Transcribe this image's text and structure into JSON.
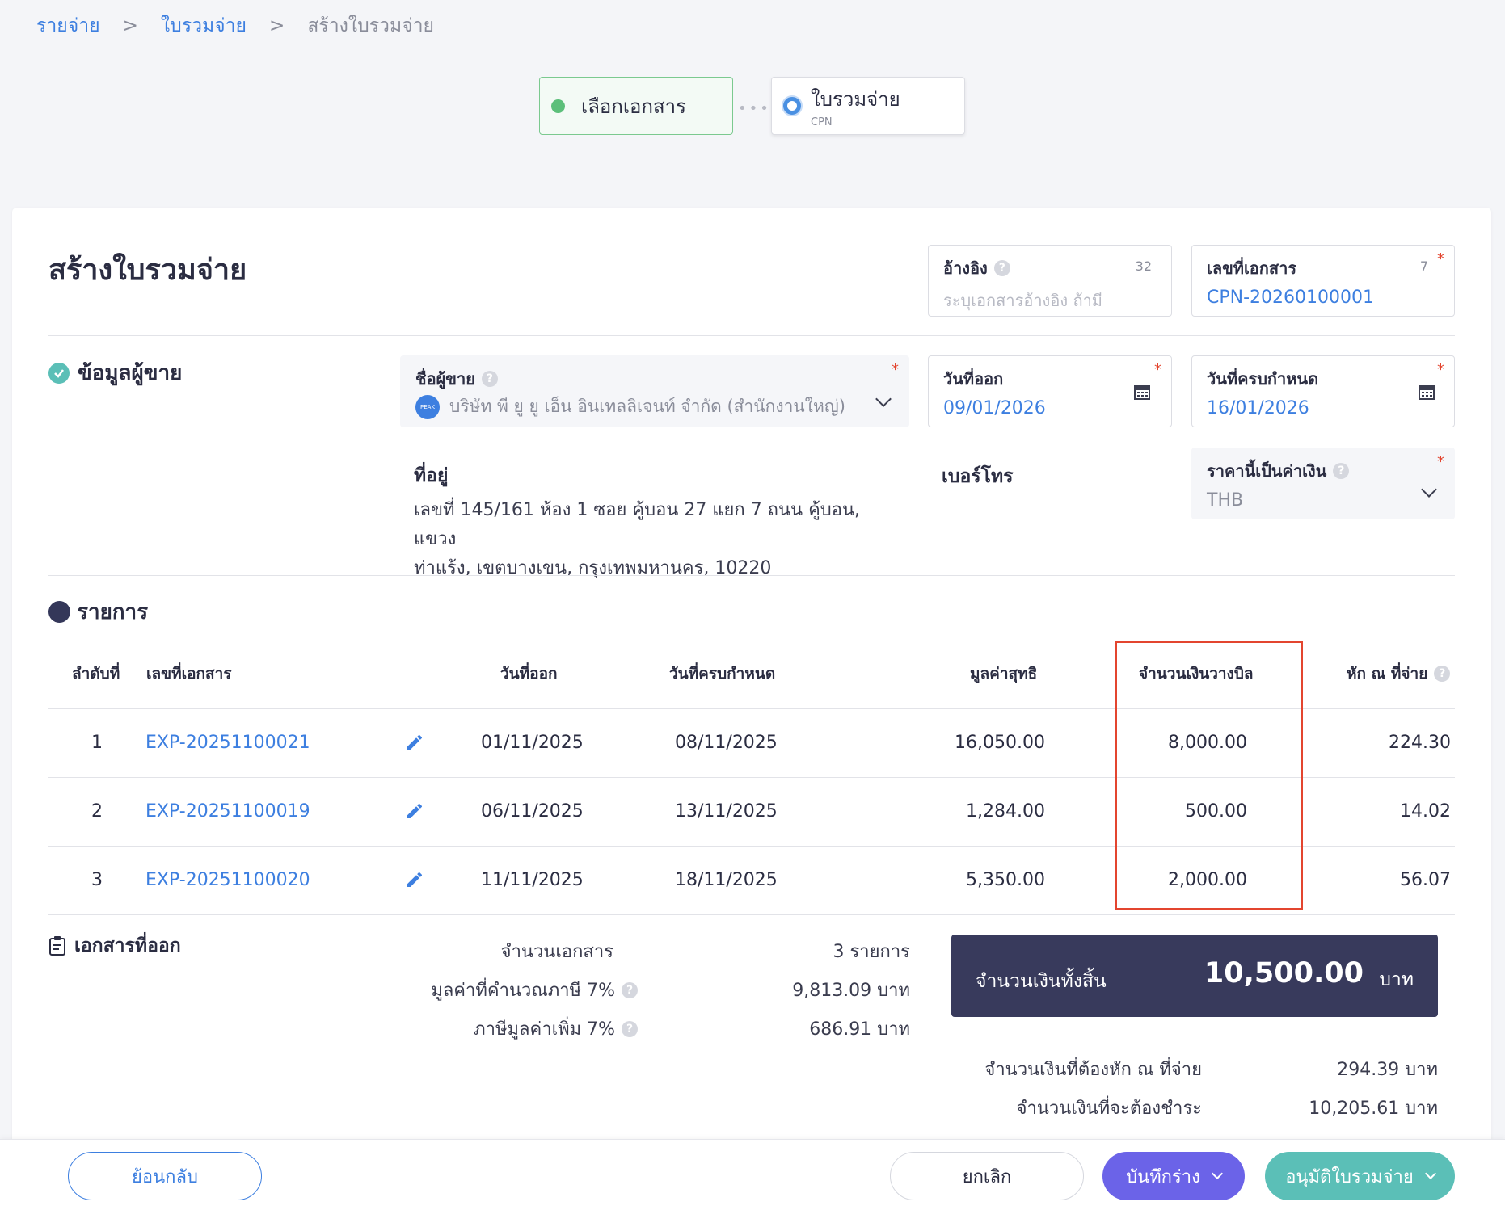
{
  "breadcrumb": {
    "items": [
      "รายจ่าย",
      "ใบรวมจ่าย"
    ],
    "separator": ">",
    "current": "สร้างใบรวมจ่าย"
  },
  "stepper": {
    "step1": {
      "label": "เลือกเอกสาร"
    },
    "step2": {
      "label": "ใบรวมจ่าย",
      "sub": "CPN"
    }
  },
  "header": {
    "title": "สร้างใบรวมจ่าย",
    "reference": {
      "label": "อ้างอิง",
      "counter": "32",
      "placeholder": "ระบุเอกสารอ้างอิง ถ้ามี"
    },
    "doc_number": {
      "label": "เลขที่เอกสาร",
      "counter": "7",
      "value": "CPN-20260100001"
    }
  },
  "seller": {
    "section_title": "ข้อมูลผู้ขาย",
    "name_label": "ชื่อผู้ขาย",
    "name_value": "บริษัท พี ยู ยู เอ็น อินเทลลิเจนท์ จำกัด (สำนักงานใหญ่)",
    "issue_date": {
      "label": "วันที่ออก",
      "value": "09/01/2026"
    },
    "due_date": {
      "label": "วันที่ครบกำหนด",
      "value": "16/01/2026"
    },
    "address_label": "ที่อยู่",
    "address_line1": "เลขที่ 145/161 ห้อง 1 ซอย คู้บอน 27 แยก 7 ถนน คู้บอน, แขวง",
    "address_line2": "ท่าแร้ง, เขตบางเขน, กรุงเทพมหานคร, 10220",
    "phone_label": "เบอร์โทร",
    "currency": {
      "label": "ราคานี้เป็นค่าเงิน",
      "value": "THB"
    }
  },
  "items": {
    "section_title": "รายการ",
    "columns": {
      "no": "ลำดับที่",
      "doc": "เลขที่เอกสาร",
      "issue": "วันที่ออก",
      "due": "วันที่ครบกำหนด",
      "net": "มูลค่าสุทธิ",
      "billing": "จำนวนเงินวางบิล",
      "wht": "หัก ณ ที่จ่าย"
    },
    "rows": [
      {
        "no": "1",
        "doc": "EXP-20251100021",
        "issue": "01/11/2025",
        "due": "08/11/2025",
        "net": "16,050.00",
        "billing": "8,000.00",
        "wht": "224.30"
      },
      {
        "no": "2",
        "doc": "EXP-20251100019",
        "issue": "06/11/2025",
        "due": "13/11/2025",
        "net": "1,284.00",
        "billing": "500.00",
        "wht": "14.02"
      },
      {
        "no": "3",
        "doc": "EXP-20251100020",
        "issue": "11/11/2025",
        "due": "18/11/2025",
        "net": "5,350.00",
        "billing": "2,000.00",
        "wht": "56.07"
      }
    ]
  },
  "summary": {
    "section_title": "เอกสารที่ออก",
    "doc_count_label": "จำนวนเอกสาร",
    "doc_count_value": "3 รายการ",
    "taxable_label": "มูลค่าที่คำนวณภาษี 7%",
    "taxable_value": "9,813.09 บาท",
    "vat_label": "ภาษีมูลค่าเพิ่ม 7%",
    "vat_value": "686.91 บาท",
    "total_label": "จำนวนเงินทั้งสิ้น",
    "total_amount": "10,500.00",
    "total_unit": "บาท",
    "wht_label": "จำนวนเงินที่ต้องหัก ณ ที่จ่าย",
    "wht_value": "294.39 บาท",
    "payable_label": "จำนวนเงินที่จะต้องชำระ",
    "payable_value": "10,205.61 บาท"
  },
  "footer": {
    "back": "ย้อนกลับ",
    "cancel": "ยกเลิก",
    "draft": "บันทึกร่าง",
    "approve": "อนุมัติใบรวมจ่าย"
  },
  "colors": {
    "link": "#3d7fe0",
    "primary_dark": "#383a5c",
    "draft_button": "#6b63e8",
    "approve_button": "#5bbfb7",
    "highlight": "#e3452f"
  }
}
